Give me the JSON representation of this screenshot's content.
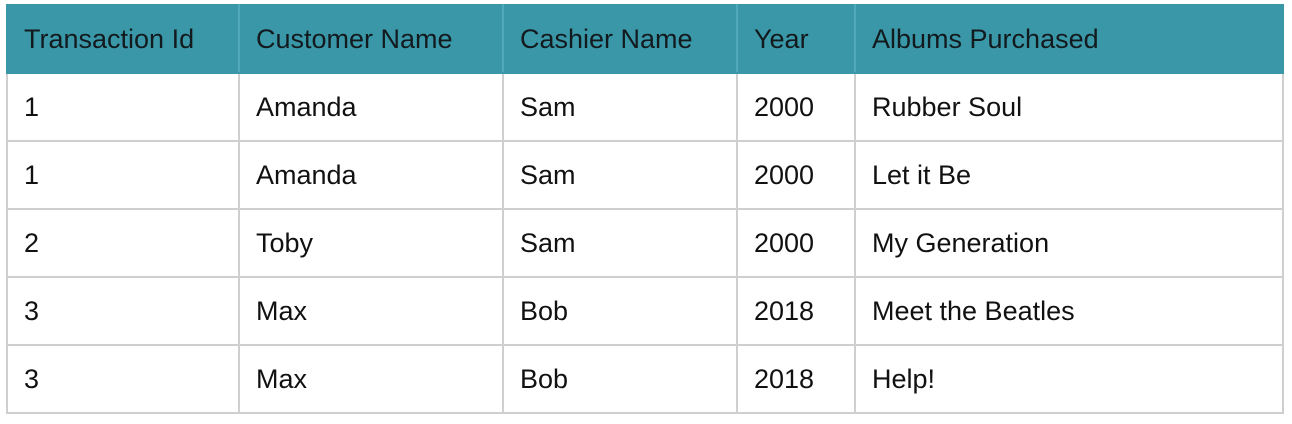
{
  "table": {
    "header_color": "#3a97a8",
    "columns": [
      "Transaction Id",
      "Customer Name",
      "Cashier Name",
      "Year",
      "Albums Purchased"
    ],
    "rows": [
      [
        "1",
        "Amanda",
        "Sam",
        "2000",
        "Rubber Soul"
      ],
      [
        "1",
        "Amanda",
        "Sam",
        "2000",
        "Let it Be"
      ],
      [
        "2",
        "Toby",
        "Sam",
        "2000",
        "My Generation"
      ],
      [
        "3",
        "Max",
        "Bob",
        "2018",
        "Meet the Beatles"
      ],
      [
        "3",
        "Max",
        "Bob",
        "2018",
        "Help!"
      ]
    ]
  }
}
